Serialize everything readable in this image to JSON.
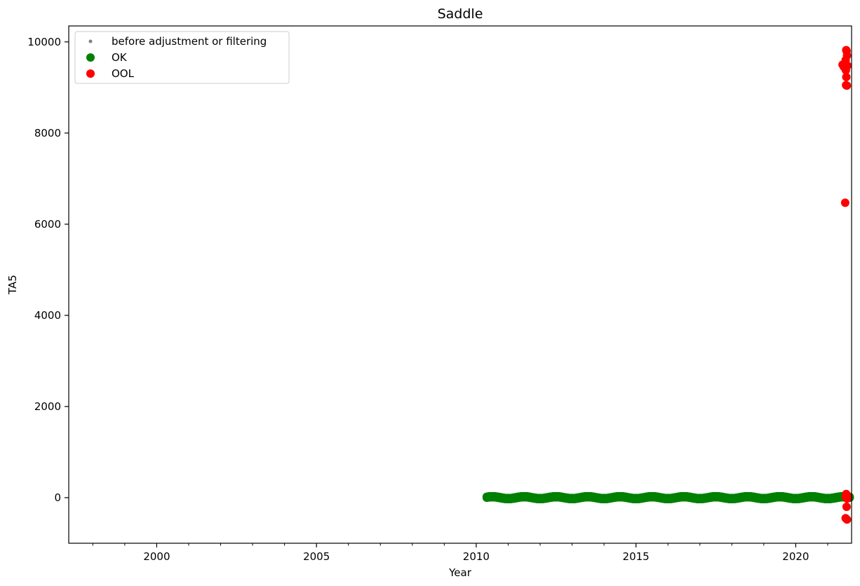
{
  "chart_data": {
    "type": "scatter",
    "title": "Saddle",
    "xlabel": "Year",
    "ylabel": "TA5",
    "xlim": [
      "1997-04-01",
      "2021-10-01"
    ],
    "ylim": [
      -1000,
      10350
    ],
    "x_ticks": [
      2000,
      2005,
      2010,
      2015,
      2020
    ],
    "y_ticks": [
      0,
      2000,
      4000,
      6000,
      8000,
      10000
    ],
    "grid": false,
    "legend_position": "top-left",
    "series": [
      {
        "name": "before adjustment or filtering",
        "color": "#808080",
        "marker": "small-dot",
        "points": []
      },
      {
        "name": "OK",
        "color": "#008000",
        "marker": "dot",
        "x_range": [
          "2010-05-01",
          "2021-09-10"
        ],
        "y_range": [
          -30,
          30
        ],
        "points": []
      },
      {
        "name": "OOL",
        "color": "#ff0000",
        "marker": "dot",
        "points": [
          {
            "x": "2021-06-20",
            "y": 9500
          },
          {
            "x": "2021-07-05",
            "y": 9450
          },
          {
            "x": "2021-07-15",
            "y": 9520
          },
          {
            "x": "2021-07-25",
            "y": 9600
          },
          {
            "x": "2021-08-01",
            "y": 9820
          },
          {
            "x": "2021-08-05",
            "y": 9800
          },
          {
            "x": "2021-08-10",
            "y": 9700
          },
          {
            "x": "2021-08-15",
            "y": 9480
          },
          {
            "x": "2021-07-28",
            "y": 9380
          },
          {
            "x": "2021-08-02",
            "y": 9230
          },
          {
            "x": "2021-07-30",
            "y": 9050
          },
          {
            "x": "2021-08-08",
            "y": 9040
          },
          {
            "x": "2021-07-20",
            "y": 6470
          },
          {
            "x": "2021-07-25",
            "y": 20
          },
          {
            "x": "2021-08-01",
            "y": 80
          },
          {
            "x": "2021-08-10",
            "y": -20
          },
          {
            "x": "2021-08-20",
            "y": 10
          },
          {
            "x": "2021-08-05",
            "y": -200
          },
          {
            "x": "2021-07-25",
            "y": -450
          },
          {
            "x": "2021-08-10",
            "y": -480
          }
        ]
      }
    ]
  }
}
